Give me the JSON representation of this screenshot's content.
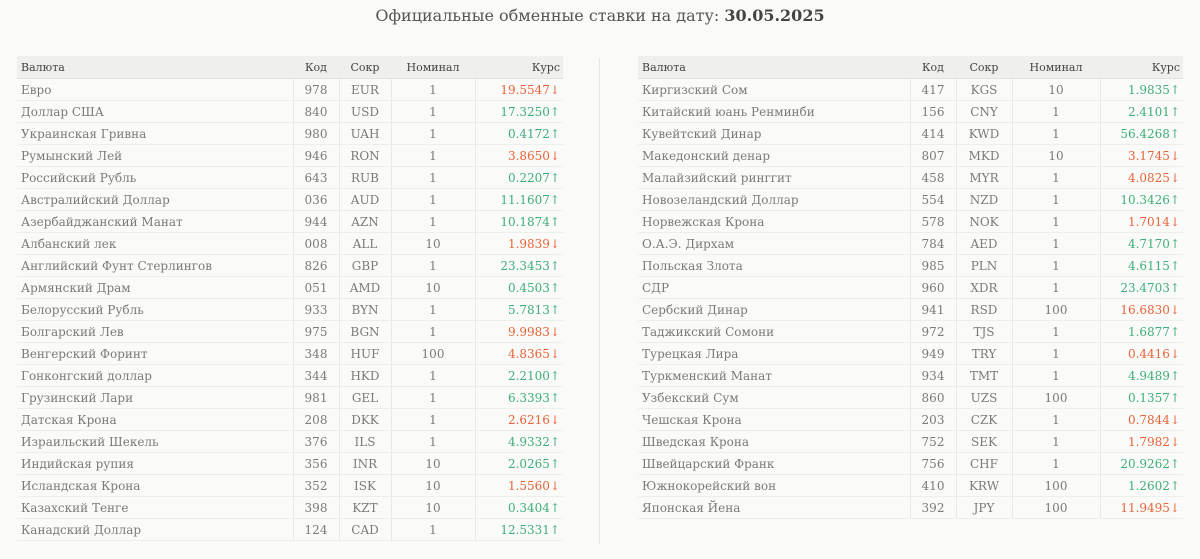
{
  "title": {
    "prefix": "Официальные обменные ставки на дату:",
    "date": "30.05.2025"
  },
  "columns": {
    "name": "Валюта",
    "code": "Код",
    "abbr": "Сокр",
    "nominal": "Номинал",
    "rate": "Курс"
  },
  "colors": {
    "up": "#3fae7a",
    "down": "#e8643a"
  },
  "left": [
    {
      "name": "Евро",
      "code": "978",
      "abbr": "EUR",
      "nominal": "1",
      "rate": "19.5547↓",
      "trend": "down"
    },
    {
      "name": "Доллар США",
      "code": "840",
      "abbr": "USD",
      "nominal": "1",
      "rate": "17.3250↑",
      "trend": "up"
    },
    {
      "name": "Украинская Гривна",
      "code": "980",
      "abbr": "UAH",
      "nominal": "1",
      "rate": "0.4172↑",
      "trend": "up"
    },
    {
      "name": "Румынский Лей",
      "code": "946",
      "abbr": "RON",
      "nominal": "1",
      "rate": "3.8650↓",
      "trend": "down"
    },
    {
      "name": "Российский Рубль",
      "code": "643",
      "abbr": "RUB",
      "nominal": "1",
      "rate": "0.2207↑",
      "trend": "up"
    },
    {
      "name": "Австралийский Доллар",
      "code": "036",
      "abbr": "AUD",
      "nominal": "1",
      "rate": "11.1607↑",
      "trend": "up"
    },
    {
      "name": "Азербайджанский Манат",
      "code": "944",
      "abbr": "AZN",
      "nominal": "1",
      "rate": "10.1874↑",
      "trend": "up"
    },
    {
      "name": "Албанский лек",
      "code": "008",
      "abbr": "ALL",
      "nominal": "10",
      "rate": "1.9839↓",
      "trend": "down"
    },
    {
      "name": "Английский Фунт Стерлингов",
      "code": "826",
      "abbr": "GBP",
      "nominal": "1",
      "rate": "23.3453↑",
      "trend": "up"
    },
    {
      "name": "Армянский Драм",
      "code": "051",
      "abbr": "AMD",
      "nominal": "10",
      "rate": "0.4503↑",
      "trend": "up"
    },
    {
      "name": "Белорусский Рубль",
      "code": "933",
      "abbr": "BYN",
      "nominal": "1",
      "rate": "5.7813↑",
      "trend": "up"
    },
    {
      "name": "Болгарский Лев",
      "code": "975",
      "abbr": "BGN",
      "nominal": "1",
      "rate": "9.9983↓",
      "trend": "down"
    },
    {
      "name": "Венгерский Форинт",
      "code": "348",
      "abbr": "HUF",
      "nominal": "100",
      "rate": "4.8365↓",
      "trend": "down"
    },
    {
      "name": "Гонконгский доллар",
      "code": "344",
      "abbr": "HKD",
      "nominal": "1",
      "rate": "2.2100↑",
      "trend": "up"
    },
    {
      "name": "Грузинский Лари",
      "code": "981",
      "abbr": "GEL",
      "nominal": "1",
      "rate": "6.3393↑",
      "trend": "up"
    },
    {
      "name": "Датская Крона",
      "code": "208",
      "abbr": "DKK",
      "nominal": "1",
      "rate": "2.6216↓",
      "trend": "down"
    },
    {
      "name": "Израильский Шекель",
      "code": "376",
      "abbr": "ILS",
      "nominal": "1",
      "rate": "4.9332↑",
      "trend": "up"
    },
    {
      "name": "Индийская рупия",
      "code": "356",
      "abbr": "INR",
      "nominal": "10",
      "rate": "2.0265↑",
      "trend": "up"
    },
    {
      "name": "Исландская Крона",
      "code": "352",
      "abbr": "ISK",
      "nominal": "10",
      "rate": "1.5560↓",
      "trend": "down"
    },
    {
      "name": "Казахский Тенге",
      "code": "398",
      "abbr": "KZT",
      "nominal": "10",
      "rate": "0.3404↑",
      "trend": "up"
    },
    {
      "name": "Канадский Доллар",
      "code": "124",
      "abbr": "CAD",
      "nominal": "1",
      "rate": "12.5331↑",
      "trend": "up"
    }
  ],
  "right": [
    {
      "name": "Киргизский Сом",
      "code": "417",
      "abbr": "KGS",
      "nominal": "10",
      "rate": "1.9835↑",
      "trend": "up"
    },
    {
      "name": "Китайский юань Ренминби",
      "code": "156",
      "abbr": "CNY",
      "nominal": "1",
      "rate": "2.4101↑",
      "trend": "up"
    },
    {
      "name": "Кувейтский Динар",
      "code": "414",
      "abbr": "KWD",
      "nominal": "1",
      "rate": "56.4268↑",
      "trend": "up"
    },
    {
      "name": "Македонский денар",
      "code": "807",
      "abbr": "MKD",
      "nominal": "10",
      "rate": "3.1745↓",
      "trend": "down"
    },
    {
      "name": "Малайзийский ринггит",
      "code": "458",
      "abbr": "MYR",
      "nominal": "1",
      "rate": "4.0825↓",
      "trend": "down"
    },
    {
      "name": "Новозеландский Доллар",
      "code": "554",
      "abbr": "NZD",
      "nominal": "1",
      "rate": "10.3426↑",
      "trend": "up"
    },
    {
      "name": "Норвежская Крона",
      "code": "578",
      "abbr": "NOK",
      "nominal": "1",
      "rate": "1.7014↓",
      "trend": "down"
    },
    {
      "name": "О.А.Э. Дирхам",
      "code": "784",
      "abbr": "AED",
      "nominal": "1",
      "rate": "4.7170↑",
      "trend": "up"
    },
    {
      "name": "Польская Злота",
      "code": "985",
      "abbr": "PLN",
      "nominal": "1",
      "rate": "4.6115↑",
      "trend": "up"
    },
    {
      "name": "СДР",
      "code": "960",
      "abbr": "XDR",
      "nominal": "1",
      "rate": "23.4703↑",
      "trend": "up"
    },
    {
      "name": "Сербский Динар",
      "code": "941",
      "abbr": "RSD",
      "nominal": "100",
      "rate": "16.6830↓",
      "trend": "down"
    },
    {
      "name": "Таджикский Сомони",
      "code": "972",
      "abbr": "TJS",
      "nominal": "1",
      "rate": "1.6877↑",
      "trend": "up"
    },
    {
      "name": "Турецкая Лира",
      "code": "949",
      "abbr": "TRY",
      "nominal": "1",
      "rate": "0.4416↓",
      "trend": "down"
    },
    {
      "name": "Туркменский Манат",
      "code": "934",
      "abbr": "TMT",
      "nominal": "1",
      "rate": "4.9489↑",
      "trend": "up"
    },
    {
      "name": "Узбекский Сум",
      "code": "860",
      "abbr": "UZS",
      "nominal": "100",
      "rate": "0.1357↑",
      "trend": "up"
    },
    {
      "name": "Чешская Крона",
      "code": "203",
      "abbr": "CZK",
      "nominal": "1",
      "rate": "0.7844↓",
      "trend": "down"
    },
    {
      "name": "Шведская Крона",
      "code": "752",
      "abbr": "SEK",
      "nominal": "1",
      "rate": "1.7982↓",
      "trend": "down"
    },
    {
      "name": "Швейцарский Франк",
      "code": "756",
      "abbr": "CHF",
      "nominal": "1",
      "rate": "20.9262↑",
      "trend": "up"
    },
    {
      "name": "Южнокорейский вон",
      "code": "410",
      "abbr": "KRW",
      "nominal": "100",
      "rate": "1.2602↑",
      "trend": "up"
    },
    {
      "name": "Японская Йена",
      "code": "392",
      "abbr": "JPY",
      "nominal": "100",
      "rate": "11.9495↓",
      "trend": "down"
    }
  ]
}
